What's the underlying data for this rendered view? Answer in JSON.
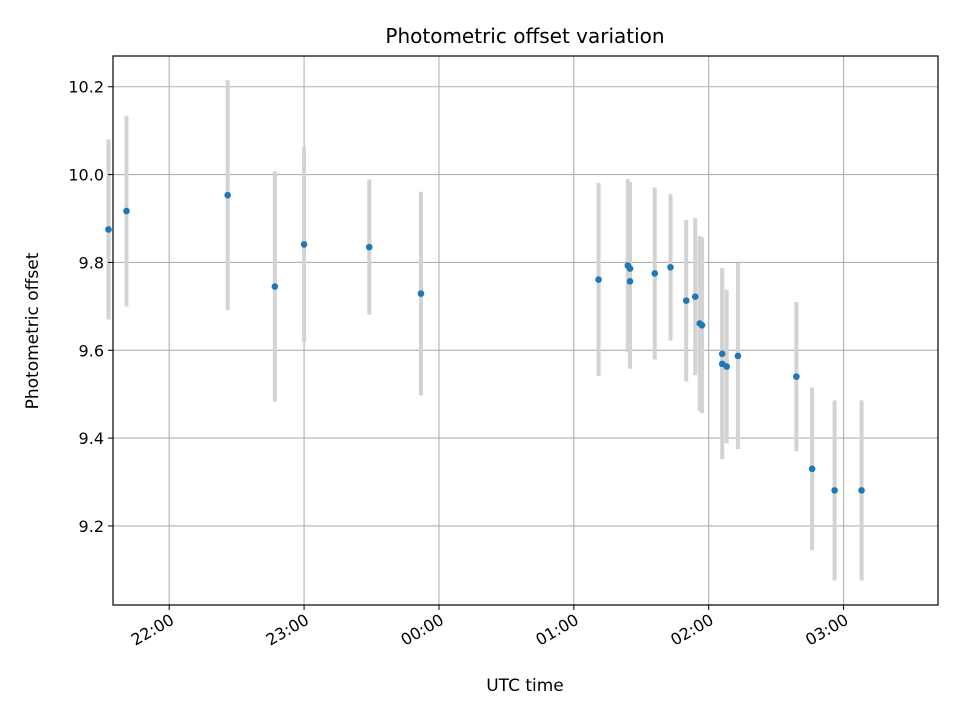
{
  "chart_data": {
    "type": "scatter",
    "title": "Photometric offset variation",
    "xlabel": "UTC time",
    "ylabel": "Photometric offset",
    "x_ticks": [
      "22:00",
      "23:00",
      "00:00",
      "01:00",
      "02:00",
      "03:00"
    ],
    "y_ticks": [
      "9.2",
      "9.4",
      "9.6",
      "9.8",
      "10.0",
      "10.2"
    ],
    "x_range": [
      "21:35",
      "03:42"
    ],
    "ylim": [
      9.02,
      10.27
    ],
    "grid": true,
    "legend": "none",
    "marker_color": "#1f77b4",
    "errorbar_color": "#d3d3d3",
    "points": [
      {
        "t": "21:33",
        "y": 9.875,
        "err": 0.205
      },
      {
        "t": "21:41",
        "y": 9.917,
        "err": 0.217
      },
      {
        "t": "22:26",
        "y": 9.953,
        "err": 0.262
      },
      {
        "t": "22:47",
        "y": 9.745,
        "err": 0.262
      },
      {
        "t": "23:00",
        "y": 9.841,
        "err": 0.222
      },
      {
        "t": "23:29",
        "y": 9.835,
        "err": 0.154
      },
      {
        "t": "23:52",
        "y": 9.729,
        "err": 0.232
      },
      {
        "t": "01:11",
        "y": 9.761,
        "err": 0.22
      },
      {
        "t": "01:24",
        "y": 9.793,
        "err": 0.197
      },
      {
        "t": "01:25",
        "y": 9.786,
        "err": 0.197
      },
      {
        "t": "01:25",
        "y": 9.757,
        "err": 0.199
      },
      {
        "t": "01:36",
        "y": 9.775,
        "err": 0.196
      },
      {
        "t": "01:43",
        "y": 9.789,
        "err": 0.167
      },
      {
        "t": "01:50",
        "y": 9.713,
        "err": 0.184
      },
      {
        "t": "01:54",
        "y": 9.722,
        "err": 0.179
      },
      {
        "t": "01:56",
        "y": 9.661,
        "err": 0.199
      },
      {
        "t": "01:57",
        "y": 9.657,
        "err": 0.2
      },
      {
        "t": "02:06",
        "y": 9.592,
        "err": 0.195
      },
      {
        "t": "02:06",
        "y": 9.569,
        "err": 0.217
      },
      {
        "t": "02:08",
        "y": 9.563,
        "err": 0.175
      },
      {
        "t": "02:13",
        "y": 9.587,
        "err": 0.212
      },
      {
        "t": "02:39",
        "y": 9.54,
        "err": 0.17
      },
      {
        "t": "02:46",
        "y": 9.33,
        "err": 0.185
      },
      {
        "t": "02:56",
        "y": 9.281,
        "err": 0.205
      },
      {
        "t": "03:08",
        "y": 9.281,
        "err": 0.205
      }
    ]
  }
}
